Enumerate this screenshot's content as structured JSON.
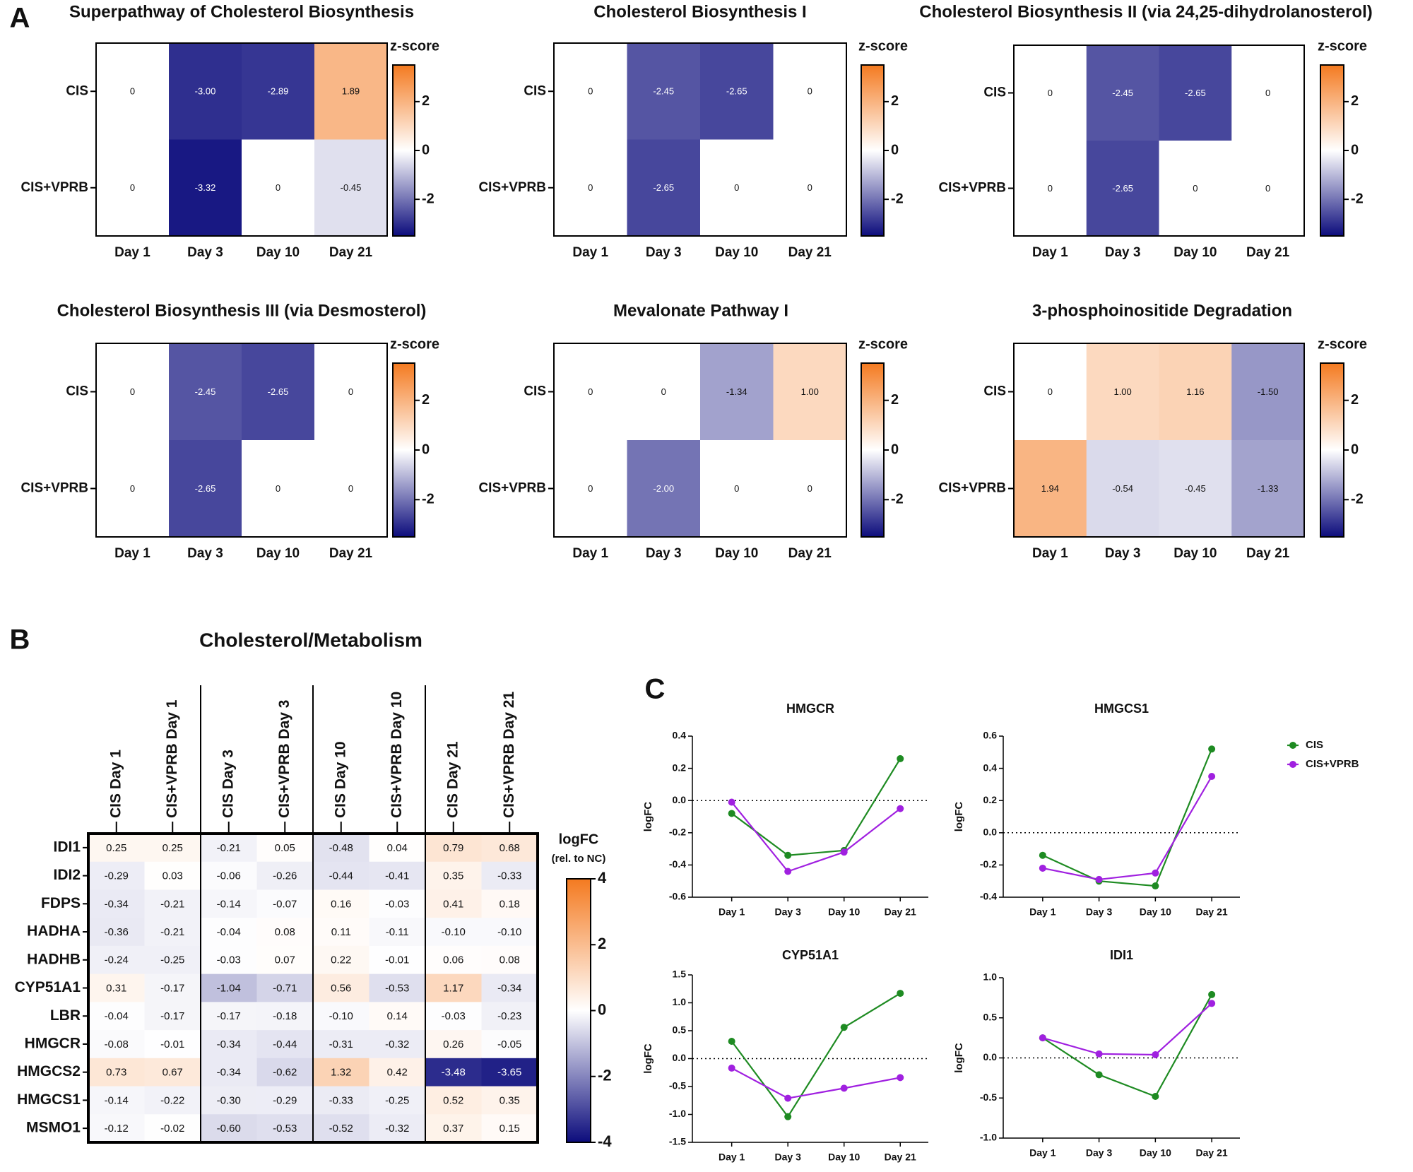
{
  "chart_data": [
    {
      "type": "heatmap",
      "panel": "A",
      "title": "Superpathway of Cholesterol Biosynthesis",
      "categories": [
        "Day 1",
        "Day 3",
        "Day 10",
        "Day 21"
      ],
      "rows": [
        "CIS",
        "CIS+VPRB"
      ],
      "values": [
        [
          0,
          -3.0,
          -2.89,
          1.89
        ],
        [
          0,
          -3.32,
          0,
          -0.45
        ]
      ],
      "value_labels": [
        [
          "0",
          "-3.00",
          "-2.89",
          "1.89"
        ],
        [
          "0",
          "-3.32",
          "0",
          "-0.45"
        ]
      ],
      "colorbar": {
        "title": "z-score",
        "lim": [
          -3.5,
          3.5
        ],
        "ticks": [
          2,
          0,
          -2
        ],
        "colors": [
          "#0c0c7c",
          "#ffffff",
          "#f47a20"
        ]
      }
    },
    {
      "type": "heatmap",
      "title": "Cholesterol Biosynthesis I",
      "categories": [
        "Day 1",
        "Day 3",
        "Day 10",
        "Day 21"
      ],
      "rows": [
        "CIS",
        "CIS+VPRB"
      ],
      "values": [
        [
          0,
          -2.45,
          -2.65,
          0
        ],
        [
          0,
          -2.65,
          0,
          0
        ]
      ],
      "value_labels": [
        [
          "0",
          "-2.45",
          "-2.65",
          "0"
        ],
        [
          "0",
          "-2.65",
          "0",
          "0"
        ]
      ],
      "colorbar": {
        "title": "z-score",
        "lim": [
          -3.5,
          3.5
        ],
        "ticks": [
          2,
          0,
          -2
        ],
        "colors": [
          "#0c0c7c",
          "#ffffff",
          "#f47a20"
        ]
      }
    },
    {
      "type": "heatmap",
      "title": "Cholesterol Biosynthesis II (via 24,25-dihydrolanosterol)",
      "categories": [
        "Day 1",
        "Day 3",
        "Day 10",
        "Day 21"
      ],
      "rows": [
        "CIS",
        "CIS+VPRB"
      ],
      "values": [
        [
          0,
          -2.45,
          -2.65,
          0
        ],
        [
          0,
          -2.65,
          0,
          0
        ]
      ],
      "value_labels": [
        [
          "0",
          "-2.45",
          "-2.65",
          "0"
        ],
        [
          "0",
          "-2.65",
          "0",
          "0"
        ]
      ],
      "colorbar": {
        "title": "z-score",
        "lim": [
          -3.5,
          3.5
        ],
        "ticks": [
          2,
          0,
          -2
        ],
        "colors": [
          "#0c0c7c",
          "#ffffff",
          "#f47a20"
        ]
      }
    },
    {
      "type": "heatmap",
      "title": "Cholesterol Biosynthesis III (via Desmosterol)",
      "categories": [
        "Day 1",
        "Day 3",
        "Day 10",
        "Day 21"
      ],
      "rows": [
        "CIS",
        "CIS+VPRB"
      ],
      "values": [
        [
          0,
          -2.45,
          -2.65,
          0
        ],
        [
          0,
          -2.65,
          0,
          0
        ]
      ],
      "value_labels": [
        [
          "0",
          "-2.45",
          "-2.65",
          "0"
        ],
        [
          "0",
          "-2.65",
          "0",
          "0"
        ]
      ],
      "colorbar": {
        "title": "z-score",
        "lim": [
          -3.5,
          3.5
        ],
        "ticks": [
          2,
          0,
          -2
        ],
        "colors": [
          "#0c0c7c",
          "#ffffff",
          "#f47a20"
        ]
      }
    },
    {
      "type": "heatmap",
      "title": "Mevalonate Pathway I",
      "categories": [
        "Day 1",
        "Day 3",
        "Day 10",
        "Day 21"
      ],
      "rows": [
        "CIS",
        "CIS+VPRB"
      ],
      "values": [
        [
          0,
          0,
          -1.34,
          1.0
        ],
        [
          0,
          -2.0,
          0,
          0
        ]
      ],
      "value_labels": [
        [
          "0",
          "0",
          "-1.34",
          "1.00"
        ],
        [
          "0",
          "-2.00",
          "0",
          "0"
        ]
      ],
      "colorbar": {
        "title": "z-score",
        "lim": [
          -3.5,
          3.5
        ],
        "ticks": [
          2,
          0,
          -2
        ],
        "colors": [
          "#0c0c7c",
          "#ffffff",
          "#f47a20"
        ]
      }
    },
    {
      "type": "heatmap",
      "title": "3-phosphoinositide Degradation",
      "categories": [
        "Day 1",
        "Day 3",
        "Day 10",
        "Day 21"
      ],
      "rows": [
        "CIS",
        "CIS+VPRB"
      ],
      "values": [
        [
          0,
          1.0,
          1.16,
          -1.5
        ],
        [
          1.94,
          -0.54,
          -0.45,
          -1.33
        ]
      ],
      "value_labels": [
        [
          "0",
          "1.00",
          "1.16",
          "-1.50"
        ],
        [
          "1.94",
          "-0.54",
          "-0.45",
          "-1.33"
        ]
      ],
      "colorbar": {
        "title": "z-score",
        "lim": [
          -3.5,
          3.5
        ],
        "ticks": [
          2,
          0,
          -2
        ],
        "colors": [
          "#0c0c7c",
          "#ffffff",
          "#f47a20"
        ]
      }
    },
    {
      "type": "heatmap",
      "panel": "B",
      "title": "Cholesterol/Metabolism",
      "categories": [
        "CIS Day 1",
        "CIS+VPRB Day 1",
        "CIS Day 3",
        "CIS+VPRB Day 3",
        "CIS Day 10",
        "CIS+VPRB Day 10",
        "CIS Day 21",
        "CIS+VPRB Day 21"
      ],
      "rows": [
        "IDI1",
        "IDI2",
        "FDPS",
        "HADHA",
        "HADHB",
        "CYP51A1",
        "LBR",
        "HMGCR",
        "HMGCS2",
        "HMGCS1",
        "MSMO1"
      ],
      "values": [
        [
          0.25,
          0.25,
          -0.21,
          0.05,
          -0.48,
          0.04,
          0.79,
          0.68
        ],
        [
          -0.29,
          0.03,
          -0.06,
          -0.26,
          -0.44,
          -0.41,
          0.35,
          -0.33
        ],
        [
          -0.34,
          -0.21,
          -0.14,
          -0.07,
          0.16,
          -0.03,
          0.41,
          0.18
        ],
        [
          -0.36,
          -0.21,
          -0.04,
          0.08,
          0.11,
          -0.11,
          -0.1,
          -0.1
        ],
        [
          -0.24,
          -0.25,
          -0.03,
          0.07,
          0.22,
          -0.01,
          0.06,
          0.08
        ],
        [
          0.31,
          -0.17,
          -1.04,
          -0.71,
          0.56,
          -0.53,
          1.17,
          -0.34
        ],
        [
          -0.04,
          -0.17,
          -0.17,
          -0.18,
          -0.1,
          0.14,
          -0.03,
          -0.23
        ],
        [
          -0.08,
          -0.01,
          -0.34,
          -0.44,
          -0.31,
          -0.32,
          0.26,
          -0.05
        ],
        [
          0.73,
          0.67,
          -0.34,
          -0.62,
          1.32,
          0.42,
          -3.48,
          -3.65
        ],
        [
          -0.14,
          -0.22,
          -0.3,
          -0.29,
          -0.33,
          -0.25,
          0.52,
          0.35
        ],
        [
          -0.12,
          -0.02,
          -0.6,
          -0.53,
          -0.52,
          -0.32,
          0.37,
          0.15
        ]
      ],
      "value_labels": [
        [
          "0.25",
          "0.25",
          "-0.21",
          "0.05",
          "-0.48",
          "0.04",
          "0.79",
          "0.68"
        ],
        [
          "-0.29",
          "0.03",
          "-0.06",
          "-0.26",
          "-0.44",
          "-0.41",
          "0.35",
          "-0.33"
        ],
        [
          "-0.34",
          "-0.21",
          "-0.14",
          "-0.07",
          "0.16",
          "-0.03",
          "0.41",
          "0.18"
        ],
        [
          "-0.36",
          "-0.21",
          "-0.04",
          "0.08",
          "0.11",
          "-0.11",
          "-0.10",
          "-0.10"
        ],
        [
          "-0.24",
          "-0.25",
          "-0.03",
          "0.07",
          "0.22",
          "-0.01",
          "0.06",
          "0.08"
        ],
        [
          "0.31",
          "-0.17",
          "-1.04",
          "-0.71",
          "0.56",
          "-0.53",
          "1.17",
          "-0.34"
        ],
        [
          "-0.04",
          "-0.17",
          "-0.17",
          "-0.18",
          "-0.10",
          "0.14",
          "-0.03",
          "-0.23"
        ],
        [
          "-0.08",
          "-0.01",
          "-0.34",
          "-0.44",
          "-0.31",
          "-0.32",
          "0.26",
          "-0.05"
        ],
        [
          "0.73",
          "0.67",
          "-0.34",
          "-0.62",
          "1.32",
          "0.42",
          "-3.48",
          "-3.65"
        ],
        [
          "-0.14",
          "-0.22",
          "-0.30",
          "-0.29",
          "-0.33",
          "-0.25",
          "0.52",
          "0.35"
        ],
        [
          "-0.12",
          "-0.02",
          "-0.60",
          "-0.53",
          "-0.52",
          "-0.32",
          "0.37",
          "0.15"
        ]
      ],
      "colorbar": {
        "title": "logFC",
        "subtitle": "(rel. to NC)",
        "lim": [
          -4,
          4
        ],
        "ticks": [
          4,
          2,
          0,
          -2,
          -4
        ],
        "colors": [
          "#0c0c7c",
          "#ffffff",
          "#f47a20"
        ]
      }
    },
    {
      "type": "line",
      "panel": "C",
      "title": "HMGCR",
      "ylabel": "logFC",
      "categories": [
        "Day 1",
        "Day 3",
        "Day 10",
        "Day 21"
      ],
      "series": [
        {
          "color": "#1e8b22",
          "values": [
            -0.08,
            -0.34,
            -0.31,
            0.26
          ]
        },
        {
          "color": "#a020e0",
          "values": [
            -0.01,
            -0.44,
            -0.32,
            -0.05
          ]
        }
      ],
      "ylim": [
        -0.6,
        0.4
      ],
      "yticks": [
        -0.6,
        -0.4,
        -0.2,
        {
          "value": 0,
          "label": "0.0"
        },
        0.2,
        0.4
      ]
    },
    {
      "type": "line",
      "title": "HMGCS1",
      "ylabel": "logFC",
      "legend": "right",
      "categories": [
        "Day 1",
        "Day 3",
        "Day 10",
        "Day 21"
      ],
      "series": [
        {
          "name": "CIS",
          "color": "#1e8b22",
          "values": [
            -0.14,
            -0.3,
            -0.33,
            0.52
          ]
        },
        {
          "name": "CIS+VPRB",
          "color": "#a020e0",
          "values": [
            -0.22,
            -0.29,
            -0.25,
            0.35
          ]
        }
      ],
      "ylim": [
        -0.4,
        0.6
      ],
      "yticks": [
        -0.4,
        -0.2,
        {
          "value": 0,
          "label": "0.0"
        },
        0.2,
        0.4,
        0.6
      ]
    },
    {
      "type": "line",
      "title": "CYP51A1",
      "ylabel": "logFC",
      "categories": [
        "Day 1",
        "Day 3",
        "Day 10",
        "Day 21"
      ],
      "series": [
        {
          "color": "#1e8b22",
          "values": [
            0.31,
            -1.04,
            0.56,
            1.17
          ]
        },
        {
          "color": "#a020e0",
          "values": [
            -0.17,
            -0.71,
            -0.53,
            -0.34
          ]
        }
      ],
      "ylim": [
        -1.5,
        1.5
      ],
      "yticks": [
        -1.5,
        {
          "value": -1,
          "label": "-1.0"
        },
        -0.5,
        {
          "value": 0,
          "label": "0.0"
        },
        0.5,
        {
          "value": 1,
          "label": "1.0"
        },
        1.5
      ]
    },
    {
      "type": "line",
      "title": "IDI1",
      "ylabel": "logFC",
      "categories": [
        "Day 1",
        "Day 3",
        "Day 10",
        "Day 21"
      ],
      "series": [
        {
          "color": "#1e8b22",
          "values": [
            0.25,
            -0.21,
            -0.48,
            0.79
          ]
        },
        {
          "color": "#a020e0",
          "values": [
            0.25,
            0.05,
            0.04,
            0.68
          ]
        }
      ],
      "ylim": [
        -1,
        1
      ],
      "yticks": [
        {
          "value": -1,
          "label": "-1.0"
        },
        -0.5,
        {
          "value": 0,
          "label": "0.0"
        },
        0.5,
        {
          "value": 1,
          "label": "1.0"
        }
      ]
    }
  ]
}
